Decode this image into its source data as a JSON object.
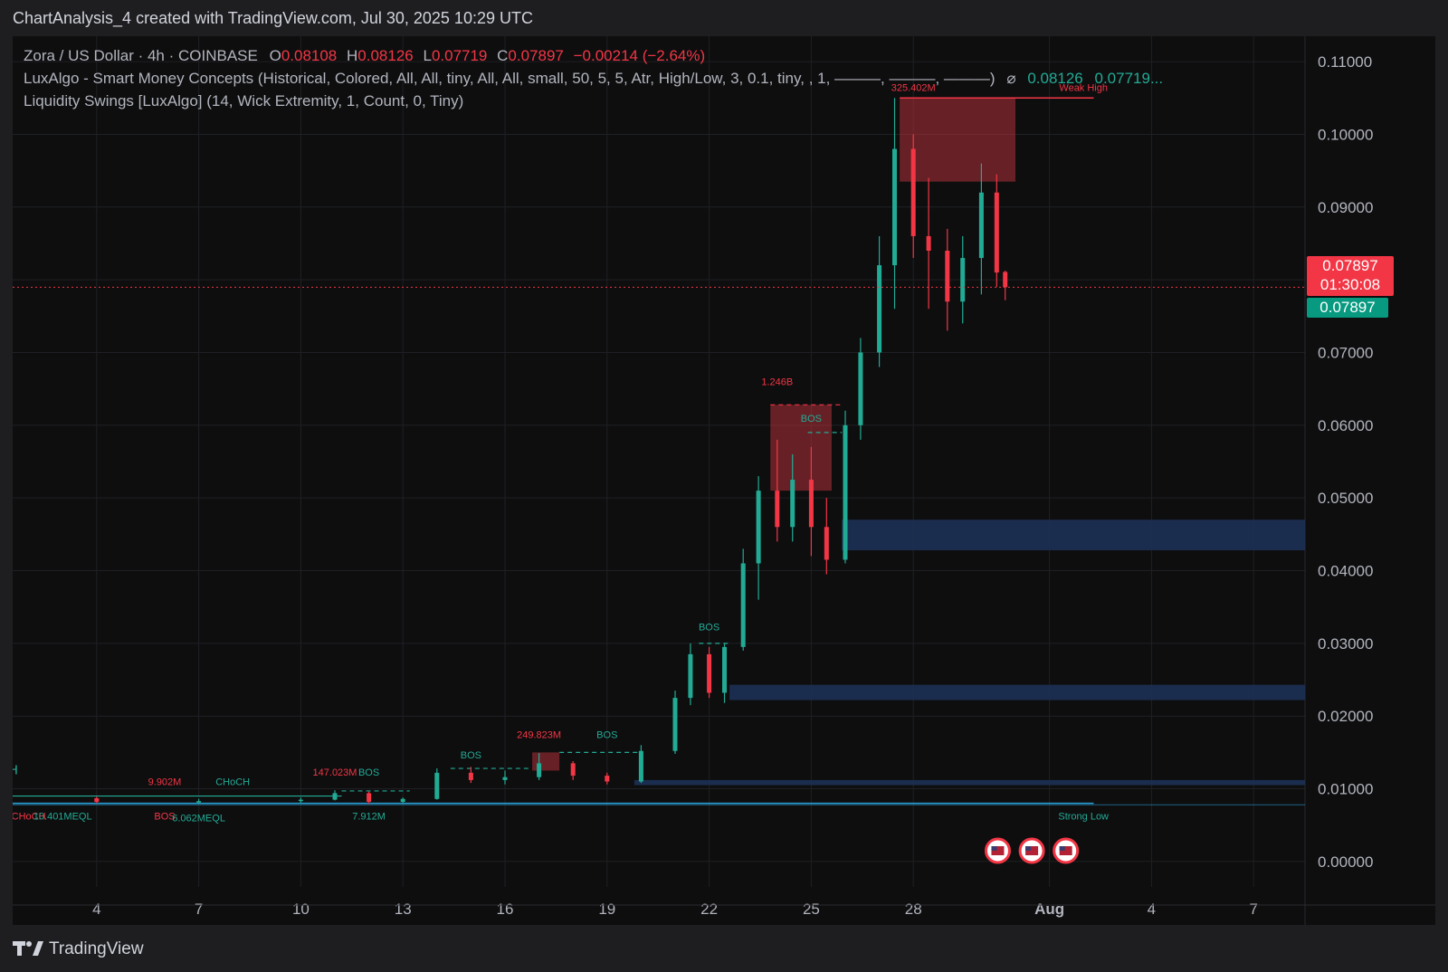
{
  "header": {
    "title": "ChartAnalysis_4 created with TradingView.com, Jul 30, 2025 10:29 UTC"
  },
  "legend": {
    "symbol": "Zora / US Dollar · 4h · COINBASE",
    "o_label": "O",
    "o_val": "0.08108",
    "h_label": "H",
    "h_val": "0.08126",
    "l_label": "L",
    "l_val": "0.07719",
    "c_label": "C",
    "c_val": "0.07897",
    "change": "−0.00214 (−2.64%)",
    "ind1": "LuxAlgo - Smart Money Concepts (Historical, Colored, All, All, tiny, All, All, small, 50, 5, 5, Atr, High/Low, 3, 0.1, tiny, , 1, ———, ———, ———)",
    "ind1_sym": "⌀",
    "ind1_v1": "0.08126",
    "ind1_v2": "0.07719...",
    "ind2": "Liquidity Swings [LuxAlgo] (14, Wick Extremity, 1, Count, 0, Tiny)"
  },
  "price_tags": {
    "current": "0.07897",
    "countdown": "01:30:08",
    "close": "0.07897"
  },
  "footer": {
    "brand": "TradingView"
  },
  "colors": {
    "up": "#22ab94",
    "down": "#f23645",
    "zone_blue": "#1c2f52",
    "zone_red": "#b0323a",
    "bg": "#0e0e0f"
  },
  "chart_data": {
    "type": "candlestick",
    "title": "",
    "xlabel": "",
    "ylabel": "",
    "ylim": [
      -0.0035,
      0.1135
    ],
    "x_ticks": [
      "4",
      "7",
      "10",
      "13",
      "16",
      "19",
      "22",
      "25",
      "28",
      "Aug",
      "4",
      "7"
    ],
    "y_ticks": [
      "0.11000",
      "0.10000",
      "0.09000",
      "0.08000",
      "0.07000",
      "0.06000",
      "0.05000",
      "0.04000",
      "0.03000",
      "0.02000",
      "0.01000",
      "0.00000"
    ],
    "y_tick_values": [
      0.11,
      0.1,
      0.09,
      0.08,
      0.07,
      0.06,
      0.05,
      0.04,
      0.03,
      0.02,
      0.01,
      0.0
    ],
    "grid": true,
    "current_price": 0.07897,
    "candles": [
      {
        "t": "Jul 1",
        "o": 0.0085,
        "h": 0.009,
        "l": 0.0081,
        "c": 0.0087
      },
      {
        "t": "Jul 4",
        "o": 0.0087,
        "h": 0.0089,
        "l": 0.008,
        "c": 0.0082
      },
      {
        "t": "Jul 7",
        "o": 0.0082,
        "h": 0.0086,
        "l": 0.0079,
        "c": 0.0083
      },
      {
        "t": "Jul 10",
        "o": 0.0083,
        "h": 0.0088,
        "l": 0.008,
        "c": 0.0085
      },
      {
        "t": "Jul 11",
        "o": 0.0085,
        "h": 0.0098,
        "l": 0.0084,
        "c": 0.0094
      },
      {
        "t": "Jul 12",
        "o": 0.0094,
        "h": 0.0096,
        "l": 0.0079,
        "c": 0.0082
      },
      {
        "t": "Jul 13",
        "o": 0.0082,
        "h": 0.0088,
        "l": 0.0079,
        "c": 0.0086
      },
      {
        "t": "Jul 14",
        "o": 0.0086,
        "h": 0.0128,
        "l": 0.0085,
        "c": 0.0122
      },
      {
        "t": "Jul 15",
        "o": 0.0122,
        "h": 0.013,
        "l": 0.0108,
        "c": 0.0112
      },
      {
        "t": "Jul 16",
        "o": 0.0112,
        "h": 0.0125,
        "l": 0.0106,
        "c": 0.0116
      },
      {
        "t": "Jul 17",
        "o": 0.0116,
        "h": 0.0149,
        "l": 0.0112,
        "c": 0.0135
      },
      {
        "t": "Jul 18",
        "o": 0.0135,
        "h": 0.0138,
        "l": 0.0112,
        "c": 0.0118
      },
      {
        "t": "Jul 19",
        "o": 0.0118,
        "h": 0.0122,
        "l": 0.0106,
        "c": 0.011
      },
      {
        "t": "Jul 20",
        "o": 0.011,
        "h": 0.016,
        "l": 0.0108,
        "c": 0.0152
      },
      {
        "t": "Jul 21",
        "o": 0.0152,
        "h": 0.0235,
        "l": 0.0148,
        "c": 0.0225
      },
      {
        "t": "Jul 21b",
        "o": 0.0225,
        "h": 0.03,
        "l": 0.0215,
        "c": 0.0285
      },
      {
        "t": "Jul 22",
        "o": 0.0285,
        "h": 0.0295,
        "l": 0.0225,
        "c": 0.0232
      },
      {
        "t": "Jul 22b",
        "o": 0.0232,
        "h": 0.03,
        "l": 0.0218,
        "c": 0.0295
      },
      {
        "t": "Jul 23",
        "o": 0.0295,
        "h": 0.043,
        "l": 0.029,
        "c": 0.041
      },
      {
        "t": "Jul 23b",
        "o": 0.041,
        "h": 0.053,
        "l": 0.036,
        "c": 0.051
      },
      {
        "t": "Jul 24",
        "o": 0.051,
        "h": 0.058,
        "l": 0.044,
        "c": 0.046
      },
      {
        "t": "Jul 24b",
        "o": 0.046,
        "h": 0.056,
        "l": 0.044,
        "c": 0.0525
      },
      {
        "t": "Jul 25",
        "o": 0.0525,
        "h": 0.057,
        "l": 0.042,
        "c": 0.046
      },
      {
        "t": "Jul 25b",
        "o": 0.046,
        "h": 0.05,
        "l": 0.0395,
        "c": 0.0415
      },
      {
        "t": "Jul 26",
        "o": 0.0415,
        "h": 0.062,
        "l": 0.041,
        "c": 0.06
      },
      {
        "t": "Jul 26b",
        "o": 0.06,
        "h": 0.072,
        "l": 0.058,
        "c": 0.07
      },
      {
        "t": "Jul 27",
        "o": 0.07,
        "h": 0.086,
        "l": 0.068,
        "c": 0.082
      },
      {
        "t": "Jul 27b",
        "o": 0.082,
        "h": 0.105,
        "l": 0.076,
        "c": 0.098
      },
      {
        "t": "Jul 28",
        "o": 0.098,
        "h": 0.1,
        "l": 0.083,
        "c": 0.086
      },
      {
        "t": "Jul 28b",
        "o": 0.086,
        "h": 0.094,
        "l": 0.076,
        "c": 0.084
      },
      {
        "t": "Jul 29",
        "o": 0.084,
        "h": 0.087,
        "l": 0.073,
        "c": 0.077
      },
      {
        "t": "Jul 29b",
        "o": 0.077,
        "h": 0.086,
        "l": 0.074,
        "c": 0.083
      },
      {
        "t": "Jul 30",
        "o": 0.083,
        "h": 0.096,
        "l": 0.078,
        "c": 0.092
      },
      {
        "t": "Jul 30b",
        "o": 0.092,
        "h": 0.0945,
        "l": 0.079,
        "c": 0.081
      },
      {
        "t": "Jul 30c",
        "o": 0.08108,
        "h": 0.08126,
        "l": 0.07719,
        "c": 0.07897
      }
    ],
    "zones": [
      {
        "kind": "supply",
        "top": 0.105,
        "bottom": 0.0935,
        "label": "325.402M"
      },
      {
        "kind": "supply",
        "top": 0.0628,
        "bottom": 0.051,
        "label": "1.246B"
      },
      {
        "kind": "supply",
        "top": 0.015,
        "bottom": 0.0125,
        "label": "249.823M"
      },
      {
        "kind": "demand",
        "top": 0.047,
        "bottom": 0.0428
      },
      {
        "kind": "demand",
        "top": 0.0243,
        "bottom": 0.0222
      },
      {
        "kind": "demand",
        "top": 0.0112,
        "bottom": 0.0105
      }
    ],
    "annotations": [
      {
        "text": "Weak High",
        "price": 0.106,
        "t": "Aug 2"
      },
      {
        "text": "Strong Low",
        "price": 0.0058,
        "t": "Aug 2"
      },
      {
        "text": "CHoCH",
        "price": 0.012,
        "t": "Jul 1"
      },
      {
        "text": "9.902M",
        "price": 0.0105,
        "t": "Jul 6"
      },
      {
        "text": "CHoCH",
        "price": 0.0105,
        "t": "Jul 8"
      },
      {
        "text": "147.023M",
        "price": 0.0118,
        "t": "Jul 11"
      },
      {
        "text": "BOS",
        "price": 0.0118,
        "t": "Jul 12"
      },
      {
        "text": "CHoCH",
        "price": 0.0058,
        "t": "Jul 2"
      },
      {
        "text": "10.401MEQL",
        "price": 0.0058,
        "t": "Jul 3"
      },
      {
        "text": "BOS",
        "price": 0.0058,
        "t": "Jul 6"
      },
      {
        "text": "6.062MEQL",
        "price": 0.0055,
        "t": "Jul 7"
      },
      {
        "text": "7.912M",
        "price": 0.0058,
        "t": "Jul 12"
      },
      {
        "text": "BOS",
        "price": 0.0142,
        "t": "Jul 15"
      },
      {
        "text": "249.823M",
        "price": 0.017,
        "t": "Jul 17"
      },
      {
        "text": "BOS",
        "price": 0.017,
        "t": "Jul 19"
      },
      {
        "text": "BOS",
        "price": 0.0318,
        "t": "Jul 22"
      },
      {
        "text": "1.246B",
        "price": 0.0655,
        "t": "Jul 24"
      },
      {
        "text": "BOS",
        "price": 0.0605,
        "t": "Jul 25"
      },
      {
        "text": "325.402M",
        "price": 0.106,
        "t": "Jul 28"
      }
    ]
  }
}
